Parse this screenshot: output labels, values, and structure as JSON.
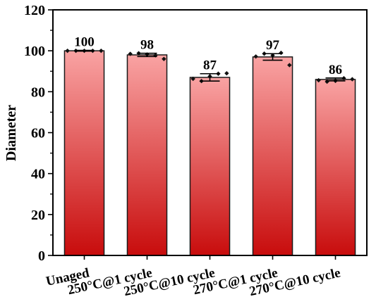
{
  "chart_data": {
    "type": "bar",
    "ylabel": "Diameter",
    "xlabel": "",
    "ylim": [
      0,
      120
    ],
    "yticks": [
      0,
      20,
      40,
      60,
      80,
      100,
      120
    ],
    "categories": [
      "Unaged",
      "250°C@1 cycle",
      "250°C@10 cycle",
      "270°C@1 cycle",
      "270°C@10 cycle"
    ],
    "values": [
      100,
      98,
      87,
      97,
      86
    ],
    "value_labels": [
      "100",
      "98",
      "87",
      "97",
      "86"
    ],
    "errors": [
      0.2,
      0.8,
      1.8,
      1.6,
      0.7
    ],
    "points": [
      [
        100,
        100,
        100,
        100,
        100
      ],
      [
        98.5,
        98.8,
        98.2,
        97.8,
        96.0
      ],
      [
        86.3,
        85.2,
        87.5,
        88.8,
        89.0
      ],
      [
        97.2,
        98.6,
        97.8,
        99.0,
        93.0
      ],
      [
        85.6,
        84.9,
        85.3,
        86.6,
        86.1
      ]
    ],
    "colors": {
      "bar_top": "#f9a3a3",
      "bar_bottom": "#c80c0c",
      "bar_edge": "#1a1a1a",
      "marker": "#111111"
    }
  }
}
